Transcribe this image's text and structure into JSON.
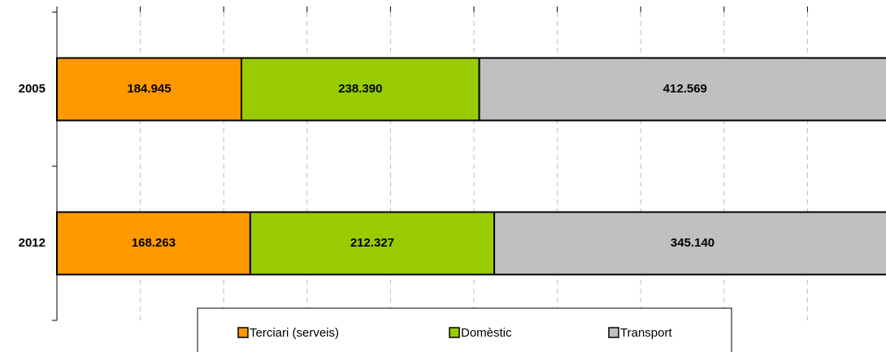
{
  "chart_data": {
    "type": "bar",
    "orientation": "horizontal",
    "percent_stacked": true,
    "categories": [
      "2005",
      "2012"
    ],
    "series": [
      {
        "name": "Terciari (serveis)",
        "color": "#ff9900",
        "values": [
          184945,
          168263
        ],
        "value_labels": [
          "184.945",
          "168.263"
        ]
      },
      {
        "name": "Domèstic",
        "color": "#99cc00",
        "values": [
          238390,
          212327
        ],
        "value_labels": [
          "238.390",
          "212.327"
        ]
      },
      {
        "name": "Transport",
        "color": "#c0c0c0",
        "values": [
          412569,
          345140
        ],
        "value_labels": [
          "412.569",
          "345.140"
        ]
      }
    ],
    "xlim": [
      0,
      100
    ],
    "xticks": [
      0,
      10,
      20,
      30,
      40,
      50,
      60,
      70,
      80,
      90,
      100
    ],
    "grid": true,
    "legend": "bottom"
  }
}
